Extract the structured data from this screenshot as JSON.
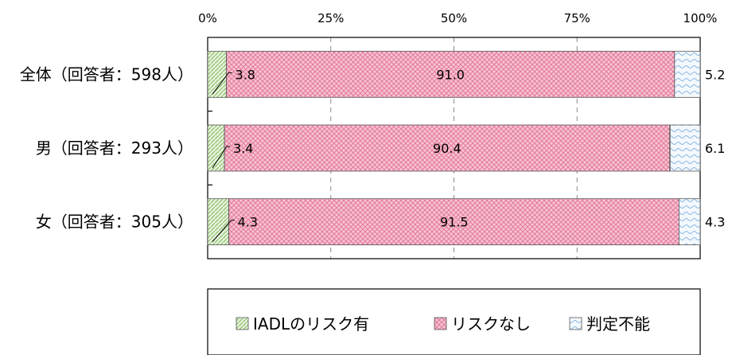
{
  "chart_data": {
    "type": "bar",
    "orientation": "horizontal",
    "stacked": "100%",
    "categories": [
      "全体（回答者：598人）",
      "男（回答者：293人）",
      "女（回答者：305人）"
    ],
    "series": [
      {
        "name": "IADLのリスク有",
        "values": [
          3.8,
          3.4,
          4.3
        ],
        "color": "#c5e0b4",
        "pattern": "diagonal-hatch-green"
      },
      {
        "name": "リスクなし",
        "values": [
          91.0,
          90.4,
          91.5
        ],
        "color": "#f4a6bd",
        "pattern": "pink-lattice"
      },
      {
        "name": "判定不能",
        "values": [
          5.2,
          6.1,
          4.3
        ],
        "color": "#bdd7ee",
        "pattern": "blue-wave"
      }
    ],
    "x_ticks": [
      "0%",
      "25%",
      "50%",
      "75%",
      "100%"
    ],
    "xlim": [
      0,
      100
    ],
    "grid": "vertical-dashed",
    "legend": "bottom"
  }
}
